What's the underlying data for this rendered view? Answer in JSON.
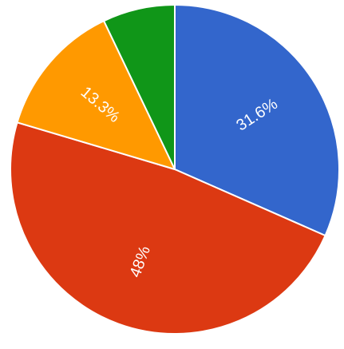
{
  "chart_data": {
    "type": "pie",
    "values": [
      31.6,
      48,
      13.3,
      7.1
    ],
    "value_labels": [
      "31.6%",
      "48%",
      "13.3%",
      null
    ],
    "colors": [
      "#3366cc",
      "#dc3912",
      "#ff9900",
      "#109618"
    ]
  }
}
